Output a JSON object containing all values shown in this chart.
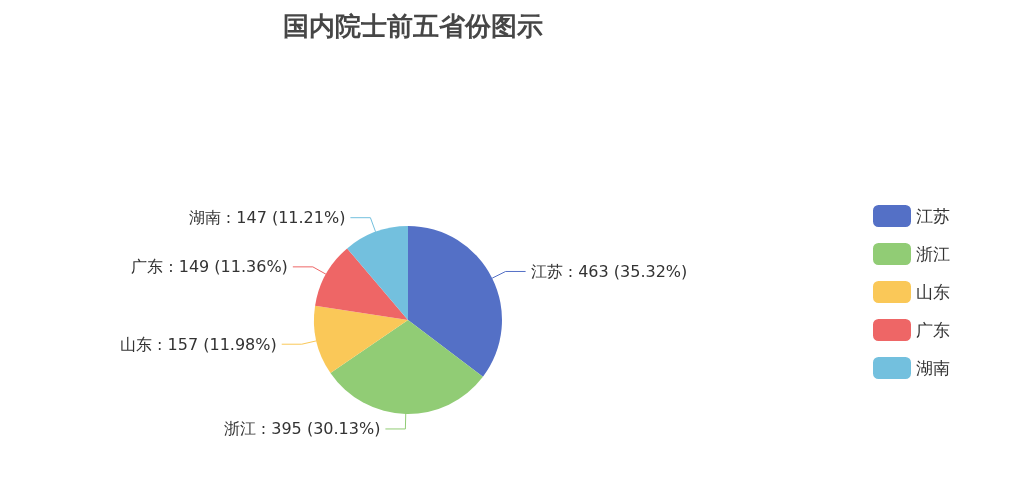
{
  "chart_data": {
    "type": "pie",
    "title": "国内院士前五省份图示",
    "categories": [
      "江苏",
      "浙江",
      "山东",
      "广东",
      "湖南"
    ],
    "values": [
      463,
      395,
      157,
      149,
      147
    ],
    "value_labels": [
      ": 463 (35.32%)",
      ": 395 (30.13%)",
      ": 157 (11.98%)",
      ": 149 (11.36%)",
      ": 147 (11.21%)"
    ],
    "colors": [
      "#5470c6",
      "#91cc75",
      "#fac858",
      "#ee6666",
      "#73c0de"
    ],
    "legend": "right"
  }
}
